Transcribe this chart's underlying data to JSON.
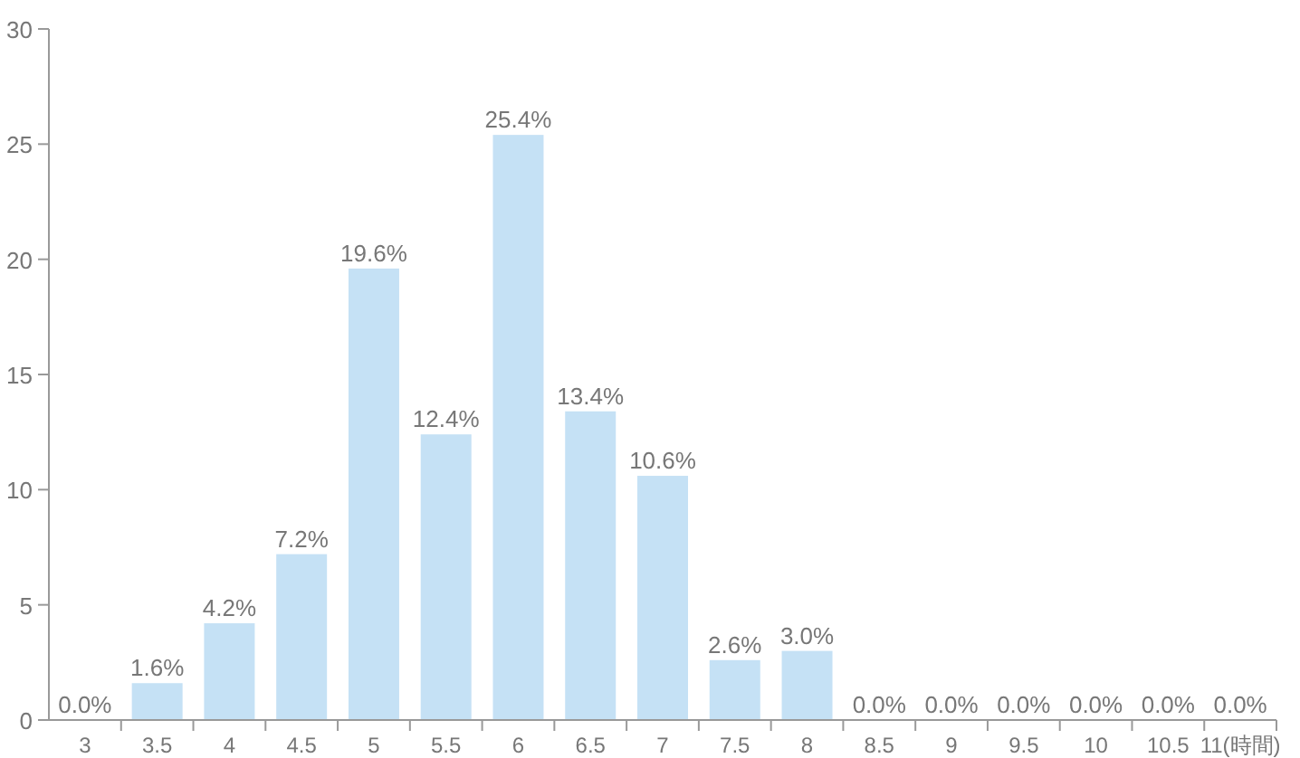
{
  "chart_data": {
    "type": "bar",
    "categories": [
      "3",
      "3.5",
      "4",
      "4.5",
      "5",
      "5.5",
      "6",
      "6.5",
      "7",
      "7.5",
      "8",
      "8.5",
      "9",
      "9.5",
      "10",
      "10.5",
      "11(時間)"
    ],
    "values": [
      0.0,
      1.6,
      4.2,
      7.2,
      19.6,
      12.4,
      25.4,
      13.4,
      10.6,
      2.6,
      3.0,
      0.0,
      0.0,
      0.0,
      0.0,
      0.0,
      0.0
    ],
    "value_labels": [
      "0.0%",
      "1.6%",
      "4.2%",
      "7.2%",
      "19.6%",
      "12.4%",
      "25.4%",
      "13.4%",
      "10.6%",
      "2.6%",
      "3.0%",
      "0.0%",
      "0.0%",
      "0.0%",
      "0.0%",
      "0.0%",
      "0.0%"
    ],
    "color": "#c5e1f5",
    "ylim": [
      0,
      30
    ],
    "yticks": [
      0,
      5,
      10,
      15,
      20,
      25,
      30
    ],
    "grid": false
  }
}
